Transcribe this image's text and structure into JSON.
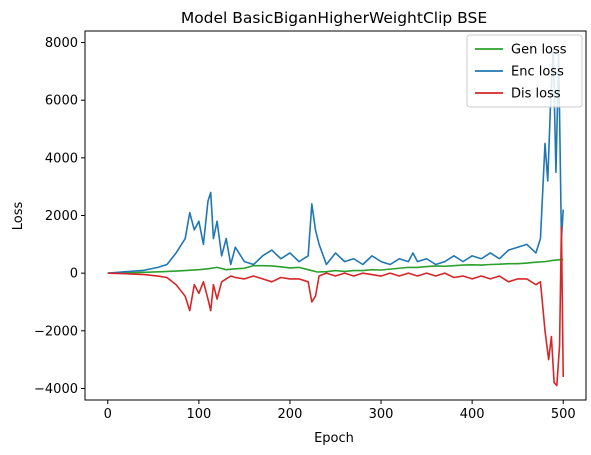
{
  "chart_data": {
    "type": "line",
    "title": "Model BasicBiganHigherWeightClip BSE",
    "xlabel": "Epoch",
    "ylabel": "Loss",
    "xlim": [
      -25,
      525
    ],
    "ylim": [
      -4400,
      8400
    ],
    "xticks": [
      0,
      100,
      200,
      300,
      400,
      500
    ],
    "yticks": [
      -4000,
      -2000,
      0,
      2000,
      4000,
      6000,
      8000
    ],
    "grid": false,
    "legend_position": "top-right",
    "series": [
      {
        "name": "Gen loss",
        "color": "#2ca02c",
        "x": [
          0,
          20,
          40,
          60,
          80,
          100,
          110,
          120,
          130,
          140,
          150,
          160,
          170,
          180,
          190,
          200,
          210,
          220,
          230,
          240,
          250,
          260,
          270,
          280,
          290,
          300,
          310,
          320,
          330,
          340,
          350,
          360,
          370,
          380,
          390,
          400,
          410,
          420,
          430,
          440,
          450,
          460,
          470,
          480,
          490,
          500
        ],
        "values": [
          0,
          10,
          30,
          50,
          80,
          120,
          150,
          200,
          120,
          150,
          170,
          260,
          260,
          250,
          220,
          180,
          200,
          120,
          40,
          50,
          90,
          60,
          90,
          90,
          120,
          110,
          140,
          170,
          200,
          200,
          230,
          250,
          240,
          260,
          280,
          290,
          280,
          300,
          310,
          330,
          330,
          350,
          380,
          400,
          450,
          470
        ]
      },
      {
        "name": "Enc loss",
        "color": "#1f77b4",
        "x": [
          0,
          20,
          40,
          55,
          65,
          75,
          85,
          90,
          95,
          100,
          105,
          110,
          113,
          116,
          120,
          125,
          130,
          135,
          140,
          150,
          160,
          170,
          180,
          190,
          200,
          210,
          220,
          224,
          228,
          232,
          240,
          250,
          260,
          270,
          280,
          290,
          300,
          310,
          320,
          330,
          335,
          340,
          350,
          360,
          370,
          380,
          390,
          400,
          410,
          420,
          430,
          440,
          450,
          460,
          470,
          475,
          480,
          483,
          486,
          489,
          492,
          495,
          498,
          500
        ],
        "values": [
          0,
          50,
          100,
          200,
          300,
          700,
          1200,
          2100,
          1500,
          1800,
          1000,
          2500,
          2800,
          1200,
          1800,
          600,
          1200,
          300,
          900,
          400,
          300,
          600,
          800,
          500,
          700,
          400,
          600,
          2400,
          1500,
          1000,
          300,
          700,
          400,
          500,
          300,
          600,
          400,
          300,
          500,
          400,
          700,
          400,
          500,
          300,
          400,
          600,
          400,
          600,
          500,
          700,
          500,
          800,
          900,
          1000,
          700,
          1200,
          4500,
          3200,
          5800,
          7800,
          3500,
          7600,
          1200,
          2200
        ]
      },
      {
        "name": "Dis loss",
        "color": "#d62728",
        "x": [
          0,
          20,
          40,
          55,
          65,
          75,
          85,
          90,
          95,
          100,
          105,
          110,
          113,
          116,
          120,
          125,
          130,
          135,
          140,
          150,
          160,
          170,
          180,
          190,
          200,
          210,
          220,
          224,
          228,
          232,
          240,
          250,
          260,
          270,
          280,
          290,
          300,
          310,
          320,
          330,
          340,
          350,
          360,
          370,
          380,
          390,
          400,
          410,
          420,
          430,
          440,
          450,
          460,
          470,
          475,
          480,
          484,
          487,
          490,
          493,
          496,
          498,
          500
        ],
        "values": [
          0,
          -20,
          -50,
          -100,
          -150,
          -400,
          -800,
          -1300,
          -400,
          -700,
          -300,
          -900,
          -1300,
          -400,
          -900,
          -300,
          -200,
          -100,
          -150,
          -200,
          -100,
          -200,
          -300,
          -150,
          -200,
          -200,
          -300,
          -1000,
          -800,
          -100,
          0,
          -100,
          0,
          -100,
          0,
          -50,
          -100,
          0,
          -100,
          0,
          -100,
          0,
          -100,
          0,
          -150,
          -100,
          -200,
          -100,
          -200,
          -100,
          -300,
          -200,
          -200,
          -400,
          -300,
          -2000,
          -3000,
          -2200,
          -3800,
          -3900,
          -2500,
          1600,
          -3600
        ]
      }
    ]
  }
}
